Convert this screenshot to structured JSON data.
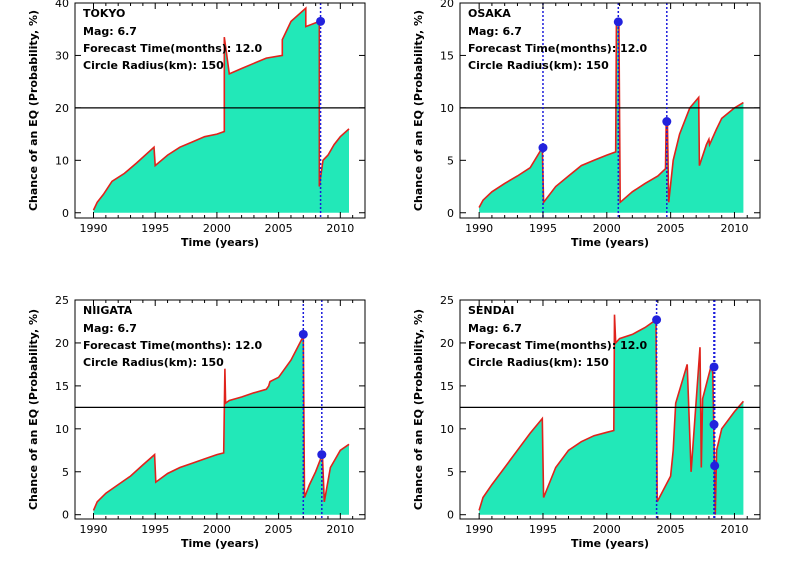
{
  "figure": {
    "xlabel": "Time (years)",
    "ylabel": "Chance of an EQ (Probability, %)"
  },
  "colors": {
    "fill": "#22e8b8",
    "line": "#e0231c",
    "threshold": "#000000",
    "event_line": "#1a1adb",
    "event_dot": "#2222dd"
  },
  "chart_data": [
    {
      "type": "area",
      "title": "TOKYO",
      "annotations": [
        "Mag: 6.7",
        "Forecast Time(months): 12.0",
        "Circle Radius(km): 150"
      ],
      "xlabel": "Time (years)",
      "ylabel": "Chance of an EQ (Probability, %)",
      "xlim": [
        1988.5,
        2012
      ],
      "ylim": [
        -1,
        40
      ],
      "xticks": [
        1990,
        1995,
        2000,
        2005,
        2010
      ],
      "yticks": [
        0,
        10,
        20,
        30,
        40
      ],
      "threshold": 20,
      "events": [
        {
          "x": 2008.4,
          "y": 36.5
        }
      ],
      "series": [
        {
          "x": [
            1990,
            1990.3,
            1990.8,
            1991.5,
            1992.5,
            1993.5,
            1994.9,
            1995.0,
            1996,
            1997,
            1998,
            1999,
            2000,
            2000.6,
            2000.6,
            2001,
            2002,
            2003,
            2004,
            2005.3,
            2005.3,
            2006,
            2007.2,
            2007.2,
            2008.3,
            2008.3,
            2008.6,
            2009,
            2009.5,
            2010,
            2010.7
          ],
          "y": [
            0.5,
            2,
            3.5,
            6,
            7.5,
            9.5,
            12.5,
            9,
            11,
            12.5,
            13.5,
            14.5,
            15,
            15.5,
            33.5,
            26.5,
            27.5,
            28.5,
            29.5,
            30,
            33,
            36.5,
            39,
            35.5,
            36.5,
            5,
            10,
            11,
            13,
            14.5,
            16
          ]
        }
      ]
    },
    {
      "type": "area",
      "title": "OSAKA",
      "annotations": [
        "Mag: 6.7",
        "Forecast Time(months): 12.0",
        "Circle Radius(km): 150"
      ],
      "xlabel": "Time (years)",
      "ylabel": "Chance of an EQ (Probability, %)",
      "xlim": [
        1988.5,
        2012
      ],
      "ylim": [
        -0.5,
        20
      ],
      "xticks": [
        1990,
        1995,
        2000,
        2005,
        2010
      ],
      "yticks": [
        0,
        5,
        10,
        15,
        20
      ],
      "threshold": 10,
      "events": [
        {
          "x": 1995.0,
          "y": 6.2
        },
        {
          "x": 2000.9,
          "y": 18.2
        },
        {
          "x": 2004.7,
          "y": 8.7
        }
      ],
      "series": [
        {
          "x": [
            1990,
            1990.3,
            1991,
            1992,
            1993,
            1994,
            1994.95,
            1995.05,
            1996,
            1997,
            1998,
            1999,
            2000,
            2000.7,
            2000.75,
            2000.95,
            2001.05,
            2002,
            2003,
            2004,
            2004.6,
            2004.65,
            2004.75,
            2004.85,
            2005.2,
            2005.7,
            2006.5,
            2007.2,
            2007.25,
            2007.8,
            2008,
            2008.05,
            2008.6,
            2009,
            2009.5,
            2010,
            2010.7
          ],
          "y": [
            0.5,
            1.2,
            2,
            2.8,
            3.5,
            4.3,
            6.2,
            1,
            2.5,
            3.5,
            4.5,
            5,
            5.5,
            5.8,
            18.2,
            18.2,
            1,
            2,
            2.8,
            3.5,
            4.2,
            8.7,
            8.7,
            1,
            5,
            7.5,
            10,
            11,
            4.5,
            6.5,
            7,
            6.5,
            8,
            9,
            9.5,
            10,
            10.5
          ]
        }
      ]
    },
    {
      "type": "area",
      "title": "NIIGATA",
      "annotations": [
        "Mag: 6.7",
        "Forecast Time(months): 12.0",
        "Circle Radius(km): 150"
      ],
      "xlabel": "Time (years)",
      "ylabel": "Chance of an EQ (Probability, %)",
      "xlim": [
        1988.5,
        2012
      ],
      "ylim": [
        -0.5,
        25
      ],
      "xticks": [
        1990,
        1995,
        2000,
        2005,
        2010
      ],
      "yticks": [
        0,
        5,
        10,
        15,
        20,
        25
      ],
      "threshold": 12.5,
      "events": [
        {
          "x": 2007.0,
          "y": 21
        },
        {
          "x": 2008.5,
          "y": 7
        }
      ],
      "series": [
        {
          "x": [
            1990,
            1990.3,
            1991,
            1992,
            1993,
            1994,
            1994.95,
            1995.05,
            1996,
            1997,
            1998,
            1999,
            2000,
            2000.55,
            2000.65,
            2000.7,
            2001,
            2002,
            2003,
            2004,
            2004.2,
            2004.3,
            2005,
            2006,
            2006.9,
            2007.0,
            2007.1,
            2007.5,
            2008,
            2008.4,
            2008.55,
            2008.7,
            2009.2,
            2009.6,
            2010,
            2010.7
          ],
          "y": [
            0.5,
            1.5,
            2.5,
            3.5,
            4.5,
            5.8,
            7,
            3.8,
            4.8,
            5.5,
            6,
            6.5,
            7,
            7.2,
            17,
            13,
            13.3,
            13.7,
            14.2,
            14.6,
            15,
            15.5,
            16,
            18,
            20.5,
            21,
            2,
            3.5,
            5,
            6.5,
            7,
            1.5,
            5.5,
            6.5,
            7.5,
            8.2
          ]
        }
      ]
    },
    {
      "type": "area",
      "title": "SENDAI",
      "annotations": [
        "Mag: 6.7",
        "Forecast Time(months): 12.0",
        "Circle Radius(km): 150"
      ],
      "xlabel": "Time (years)",
      "ylabel": "Chance of an EQ (Probability, %)",
      "xlim": [
        1988.5,
        2012
      ],
      "ylim": [
        -0.5,
        25
      ],
      "xticks": [
        1990,
        1995,
        2000,
        2005,
        2010
      ],
      "yticks": [
        0,
        5,
        10,
        15,
        20,
        25
      ],
      "threshold": 12.5,
      "events": [
        {
          "x": 2003.9,
          "y": 22.7
        },
        {
          "x": 2008.4,
          "y": 17.2
        },
        {
          "x": 2008.4,
          "y": 10.5
        },
        {
          "x": 2008.45,
          "y": 5.7
        }
      ],
      "series": [
        {
          "x": [
            1990,
            1990.3,
            1991,
            1992,
            1993,
            1994,
            1994.95,
            1995.05,
            1996,
            1997,
            1998,
            1999,
            2000,
            2000.55,
            2000.6,
            2000.7,
            2001,
            2002,
            2003,
            2003.85,
            2003.95,
            2005,
            2005.2,
            2005.4,
            2006,
            2006.3,
            2006.6,
            2007.3,
            2007.4,
            2007.5,
            2008.2,
            2008.3,
            2008.5,
            2008.6,
            2009,
            2010,
            2010.7
          ],
          "y": [
            0.5,
            2,
            3.5,
            5.5,
            7.5,
            9.5,
            11.2,
            2,
            5.5,
            7.5,
            8.5,
            9.2,
            9.6,
            9.8,
            23.3,
            20,
            20.5,
            21,
            21.8,
            22.7,
            1.5,
            4.5,
            7.5,
            13,
            16,
            17.5,
            5,
            19.5,
            5.5,
            13.5,
            17.5,
            16.5,
            0,
            7.5,
            10,
            12,
            13.2
          ]
        }
      ]
    }
  ]
}
